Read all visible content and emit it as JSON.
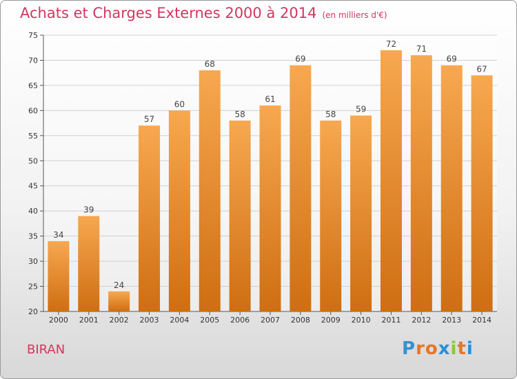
{
  "title": "Achats et Charges Externes 2000 à 2014",
  "subtitle": "(en milliers d'€)",
  "place": "BIRAN",
  "logo": {
    "letters": [
      "P",
      "r",
      "o",
      "x",
      "i",
      "t",
      "i"
    ],
    "colors": [
      "#3a8fd0",
      "#e8742a",
      "#e8742a",
      "#2b8fd6",
      "#8cc63e",
      "#e8742a",
      "#2b8fd6"
    ]
  },
  "colors": {
    "bar_top": "#f7a850",
    "bar_bottom": "#cf6e12",
    "title": "#d2365e"
  },
  "chart_data": {
    "type": "bar",
    "categories": [
      "2000",
      "2001",
      "2002",
      "2003",
      "2004",
      "2005",
      "2006",
      "2007",
      "2008",
      "2009",
      "2010",
      "2011",
      "2012",
      "2013",
      "2014"
    ],
    "values": [
      34,
      39,
      24,
      57,
      60,
      68,
      58,
      61,
      69,
      58,
      59,
      72,
      71,
      69,
      67
    ],
    "xlabel": "",
    "ylabel": "",
    "ylim": [
      20,
      75
    ],
    "yticks": [
      20,
      25,
      30,
      35,
      40,
      45,
      50,
      55,
      60,
      65,
      70,
      75
    ],
    "grid": true,
    "data_labels": true
  }
}
